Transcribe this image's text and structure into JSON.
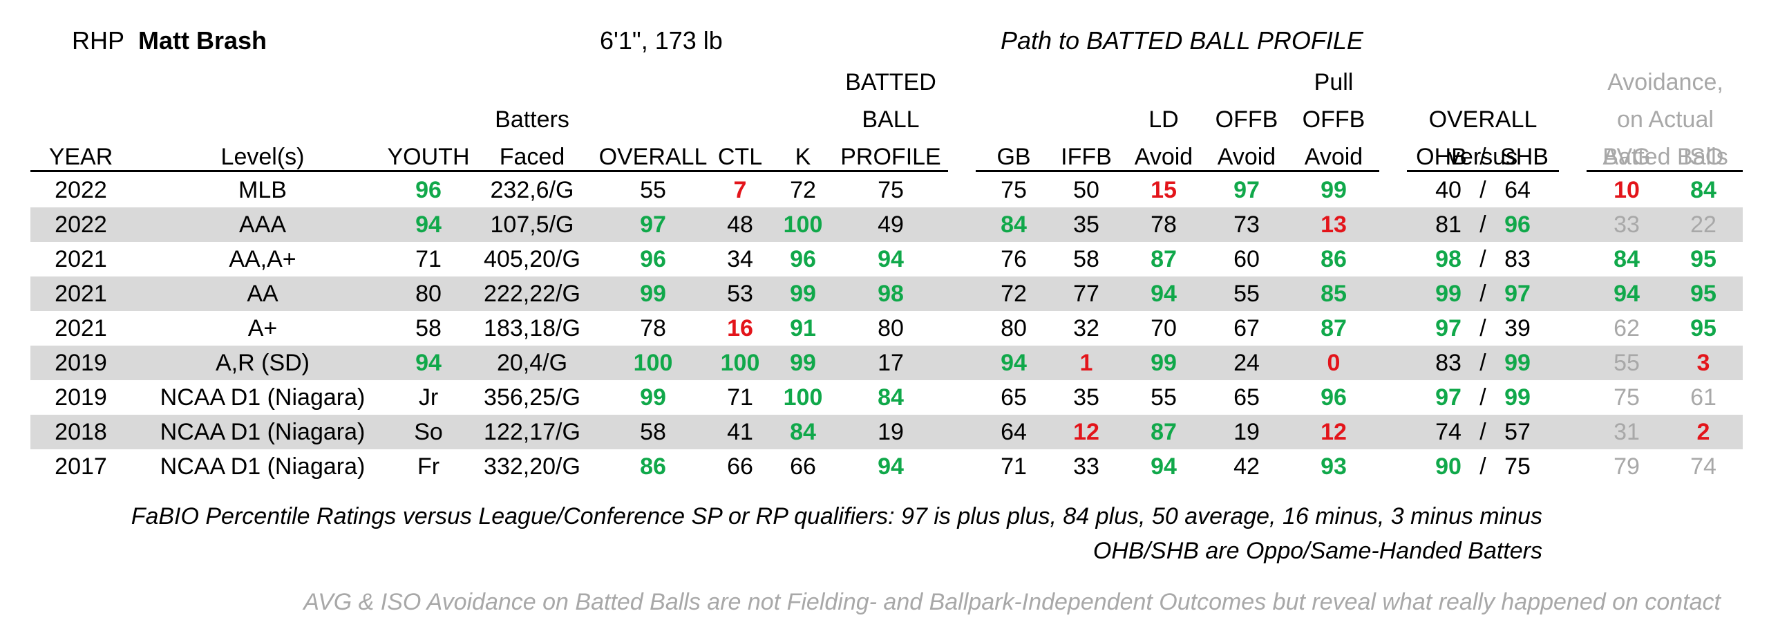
{
  "player": {
    "hand": "RHP",
    "name": "Matt Brash",
    "build": "6'1\", 173 lb",
    "path_heading": "Path to BATTED BALL PROFILE",
    "avoid_heading": [
      "Avoidance,",
      "on Actual",
      "Batted Balls"
    ]
  },
  "columns": {
    "year": "YEAR",
    "level": "Level(s)",
    "youth": "YOUTH",
    "bf": [
      "Batters",
      "Faced"
    ],
    "overall": "OVERALL",
    "ctl": "CTL",
    "k": "K",
    "bbp": [
      "BATTED",
      "BALL",
      "PROFILE"
    ],
    "gb": "GB",
    "iffb": "IFFB",
    "ld": [
      "LD",
      "Avoid"
    ],
    "offb": [
      "OFFB",
      "Avoid"
    ],
    "pull": [
      "Pull",
      "OFFB",
      "Avoid"
    ],
    "versus": [
      "OVERALL",
      "versus"
    ],
    "ohb": "OHB",
    "slash": "/",
    "shb": "SHB",
    "avg": "AVG",
    "iso": "ISO"
  },
  "rows": [
    {
      "year": "2022",
      "level": "MLB",
      "youth": "96",
      "bf": "232,6/G",
      "overall": "55",
      "ctl": "7",
      "k": "72",
      "bbp": "75",
      "gb": "75",
      "iffb": "50",
      "ld": "15",
      "offb": "97",
      "pull": "99",
      "ohb": "40",
      "shb": "64",
      "avg": "10",
      "iso": "84"
    },
    {
      "year": "2022",
      "level": "AAA",
      "youth": "94",
      "bf": "107,5/G",
      "overall": "97",
      "ctl": "48",
      "k": "100",
      "bbp": "49",
      "gb": "84",
      "iffb": "35",
      "ld": "78",
      "offb": "73",
      "pull": "13",
      "ohb": "81",
      "shb": "96",
      "avg": "33",
      "iso": "22"
    },
    {
      "year": "2021",
      "level": "AA,A+",
      "youth": "71",
      "bf": "405,20/G",
      "overall": "96",
      "ctl": "34",
      "k": "96",
      "bbp": "94",
      "gb": "76",
      "iffb": "58",
      "ld": "87",
      "offb": "60",
      "pull": "86",
      "ohb": "98",
      "shb": "83",
      "avg": "84",
      "iso": "95"
    },
    {
      "year": "2021",
      "level": "AA",
      "youth": "80",
      "bf": "222,22/G",
      "overall": "99",
      "ctl": "53",
      "k": "99",
      "bbp": "98",
      "gb": "72",
      "iffb": "77",
      "ld": "94",
      "offb": "55",
      "pull": "85",
      "ohb": "99",
      "shb": "97",
      "avg": "94",
      "iso": "95"
    },
    {
      "year": "2021",
      "level": "A+",
      "youth": "58",
      "bf": "183,18/G",
      "overall": "78",
      "ctl": "16",
      "k": "91",
      "bbp": "80",
      "gb": "80",
      "iffb": "32",
      "ld": "70",
      "offb": "67",
      "pull": "87",
      "ohb": "97",
      "shb": "39",
      "avg": "62",
      "iso": "95"
    },
    {
      "year": "2019",
      "level": "A,R (SD)",
      "youth": "94",
      "bf": "20,4/G",
      "overall": "100",
      "ctl": "100",
      "k": "99",
      "bbp": "17",
      "gb": "94",
      "iffb": "1",
      "ld": "99",
      "offb": "24",
      "pull": "0",
      "ohb": "83",
      "shb": "99",
      "avg": "55",
      "iso": "3"
    },
    {
      "year": "2019",
      "level": "NCAA D1 (Niagara)",
      "youth": "Jr",
      "bf": "356,25/G",
      "overall": "99",
      "ctl": "71",
      "k": "100",
      "bbp": "84",
      "gb": "65",
      "iffb": "35",
      "ld": "55",
      "offb": "65",
      "pull": "96",
      "ohb": "97",
      "shb": "99",
      "avg": "75",
      "iso": "61"
    },
    {
      "year": "2018",
      "level": "NCAA D1 (Niagara)",
      "youth": "So",
      "bf": "122,17/G",
      "overall": "58",
      "ctl": "41",
      "k": "84",
      "bbp": "19",
      "gb": "64",
      "iffb": "12",
      "ld": "87",
      "offb": "19",
      "pull": "12",
      "ohb": "74",
      "shb": "57",
      "avg": "31",
      "iso": "2"
    },
    {
      "year": "2017",
      "level": "NCAA D1 (Niagara)",
      "youth": "Fr",
      "bf": "332,20/G",
      "overall": "86",
      "ctl": "66",
      "k": "66",
      "bbp": "94",
      "gb": "71",
      "iffb": "33",
      "ld": "94",
      "offb": "42",
      "pull": "93",
      "ohb": "90",
      "shb": "75",
      "avg": "79",
      "iso": "74"
    }
  ],
  "colors": {
    "high": "#10a84a",
    "low": "#e3141a",
    "muted": "#a8a8a8",
    "band": "#d9d9d9"
  },
  "notes": {
    "scale": "FaBIO Percentile Ratings versus League/Conference SP or RP qualifiers: 97 is plus plus, 84 plus, 50 average, 16 minus, 3 minus minus",
    "ohb": "OHB/SHB are Oppo/Same-Handed Batters",
    "avoid": "AVG & ISO Avoidance on Batted Balls are not Fielding- and Ballpark-Independent Outcomes but reveal what really happened on contact"
  }
}
